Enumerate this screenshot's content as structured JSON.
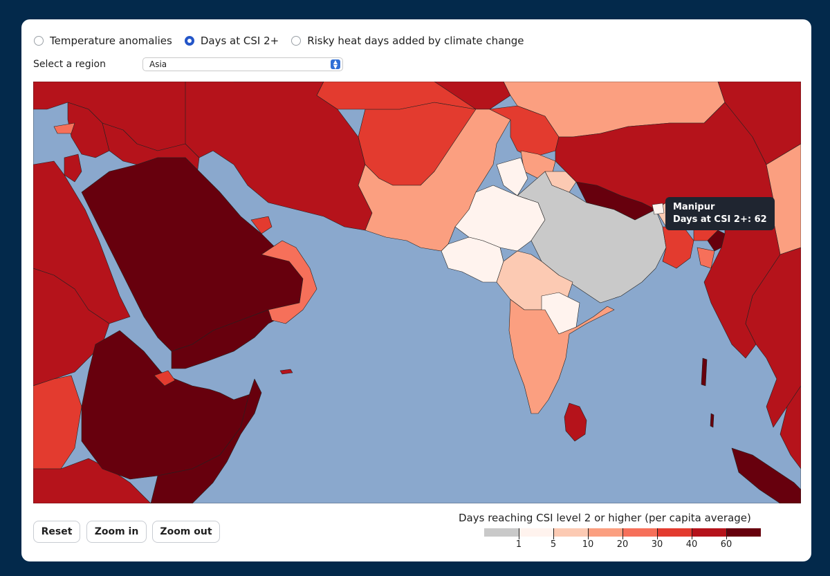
{
  "controls": {
    "radio_options": [
      {
        "label": "Temperature anomalies",
        "checked": false
      },
      {
        "label": "Days at CSI 2+",
        "checked": true
      },
      {
        "label": "Risky heat days added by climate change",
        "checked": false
      }
    ],
    "region_label": "Select a region",
    "region_value": "Asia"
  },
  "tooltip": {
    "title": "Manipur",
    "value_text": "Days at CSI 2+: 62"
  },
  "buttons": {
    "reset": "Reset",
    "zoom_in": "Zoom in",
    "zoom_out": "Zoom out"
  },
  "legend": {
    "title": "Days reaching CSI level 2 or higher (per capita average)",
    "tick_labels": [
      "1",
      "5",
      "10",
      "20",
      "30",
      "40",
      "60"
    ],
    "colors": [
      "#c9c9c9",
      "#fff3ee",
      "#fccab3",
      "#fb9f80",
      "#f6705a",
      "#e33b2f",
      "#b5131b",
      "#67000d"
    ]
  },
  "map_colors": {
    "ocean": "#8aa8cd",
    "border": "#222222"
  }
}
